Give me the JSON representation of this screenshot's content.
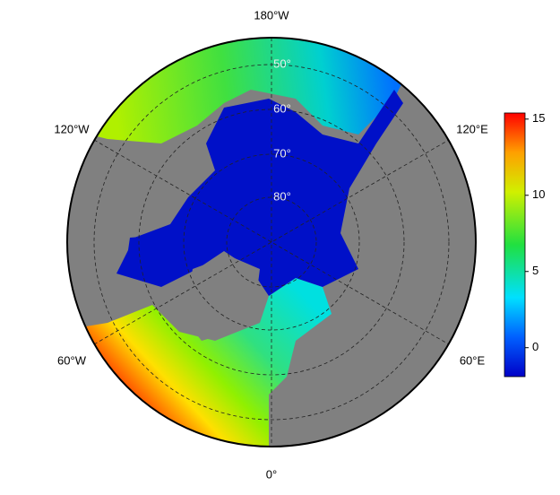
{
  "map": {
    "longitude_labels": [
      "180°W",
      "120°W",
      "120°E",
      "60°W",
      "60°E",
      "0°"
    ],
    "latitude_labels": [
      "50°",
      "60°",
      "70°",
      "80°"
    ],
    "colorbar": {
      "range": [
        -1.9,
        15.4
      ],
      "ticks": [
        0,
        5,
        10,
        15
      ]
    }
  }
}
